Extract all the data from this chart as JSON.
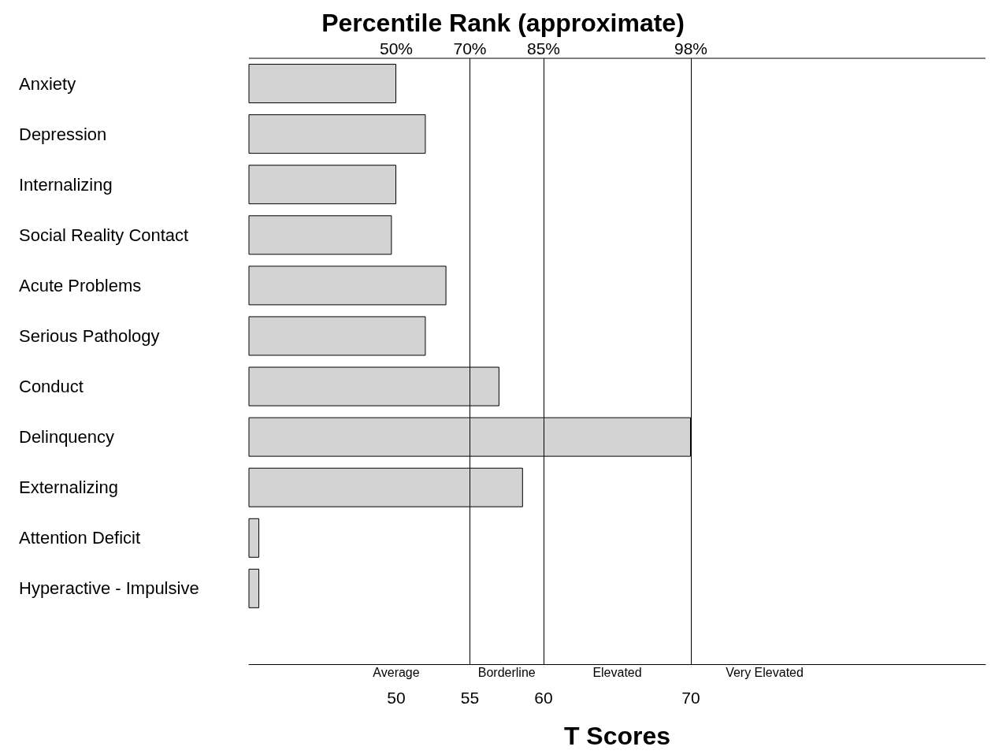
{
  "chart_data": {
    "type": "bar",
    "orientation": "horizontal",
    "title": "Percentile Rank (approximate)",
    "xlabel": "T Scores",
    "categories": [
      "Anxiety",
      "Depression",
      "Internalizing",
      "Social Reality Contact",
      "Acute Problems",
      "Serious Pathology",
      "Conduct",
      "Delinquency",
      "Externalizing",
      "Attention Deficit",
      "Hyperactive - Impulsive",
      null
    ],
    "values": [
      50,
      52,
      50,
      49.7,
      53.4,
      52,
      57,
      70,
      58.6,
      40.7,
      40.7,
      null
    ],
    "color": "#d3d3d3",
    "xlim": [
      40,
      90
    ],
    "xticks": [
      50,
      55,
      60,
      70
    ],
    "ref_lines": [
      {
        "axis": "x",
        "value": 55,
        "color": "#000000"
      },
      {
        "axis": "x",
        "value": 60,
        "color": "#000000"
      },
      {
        "axis": "x",
        "value": 70,
        "color": "#000000"
      }
    ],
    "annotations": [
      "50%",
      "70%",
      "85%",
      "98%",
      "Average",
      "Borderline",
      "Elevated",
      "Very Elevated"
    ],
    "grid": false
  }
}
